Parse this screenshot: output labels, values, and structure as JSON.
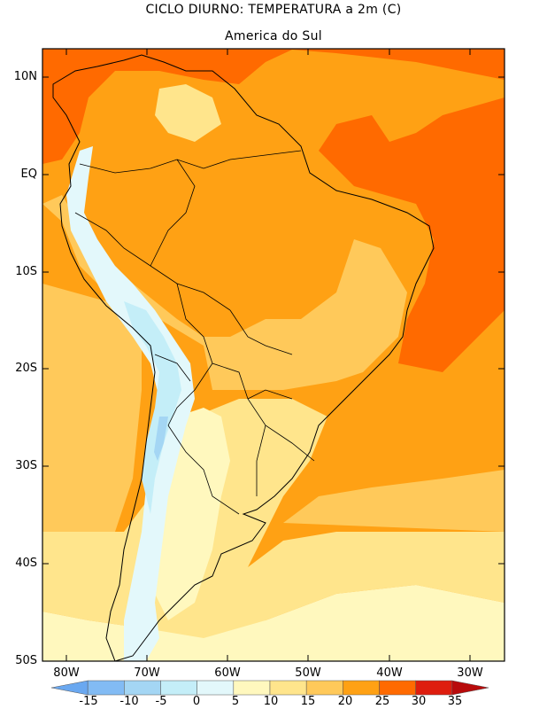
{
  "title": "CICLO DIURNO: TEMPERATURA a 2m (C)",
  "subtitle": "America do Sul",
  "y_ticks": [
    "10N",
    "EQ",
    "10S",
    "20S",
    "30S",
    "40S",
    "50S"
  ],
  "x_ticks": [
    "80W",
    "70W",
    "60W",
    "50W",
    "40W",
    "30W"
  ],
  "legend": {
    "labels": [
      "-15",
      "-10",
      "-5",
      "0",
      "5",
      "10",
      "15",
      "20",
      "25",
      "30",
      "35"
    ],
    "colors": [
      "#6aa8f0",
      "#82bbf4",
      "#a4d6f4",
      "#c4eef8",
      "#e3f8fb",
      "#fff8be",
      "#ffe58c",
      "#ffc95a",
      "#ffa114",
      "#ff6a00",
      "#de1d0e",
      "#b80b0b"
    ]
  },
  "colors": {
    "land_border": "#000000",
    "hot": "#ff6a00",
    "warm": "#ffa114",
    "mild": "#ffc95a",
    "cool": "#ffe58c",
    "cold": "#fff8be",
    "andes_snow": "#e3f8fb",
    "andes_ice": "#c4eef8"
  }
}
